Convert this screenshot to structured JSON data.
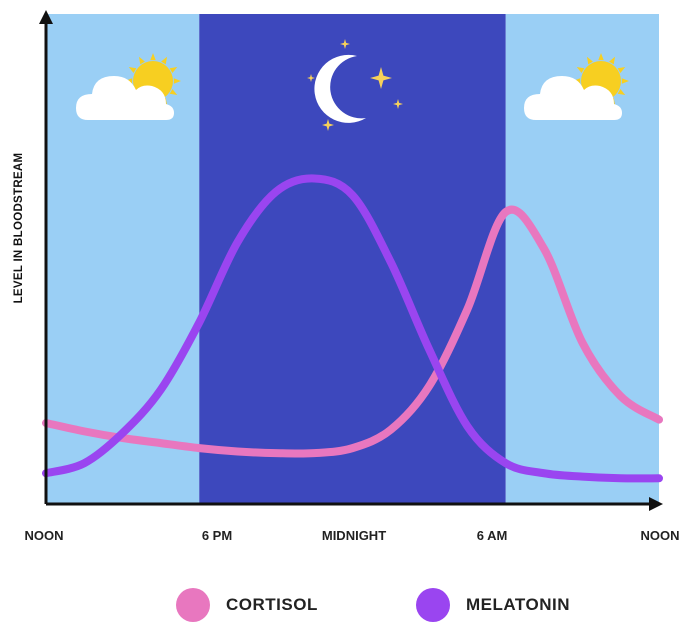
{
  "chart_data": {
    "type": "line",
    "title": "",
    "xlabel": "",
    "ylabel": "LEVEL IN BLOODSTREAM",
    "x_ticks": [
      "NOON",
      "6 PM",
      "MIDNIGHT",
      "6 AM",
      "NOON"
    ],
    "x_range_hours": [
      0,
      24
    ],
    "y_range": [
      0,
      100
    ],
    "grid": false,
    "legend_position": "bottom-center",
    "night_band_hours": [
      6,
      18
    ],
    "x": [
      0,
      1.5,
      3,
      4.5,
      6,
      7.5,
      9,
      10.5,
      12,
      13.5,
      15,
      16.5,
      18,
      19.5,
      21,
      22.5,
      24
    ],
    "series": [
      {
        "name": "CORTISOL",
        "color": "#e877bf",
        "values": [
          20,
          17.5,
          15.5,
          14,
          12.5,
          11.5,
          11,
          11,
          12.5,
          18,
          31,
          54,
          83,
          72,
          44,
          28,
          21
        ]
      },
      {
        "name": "MELATONIN",
        "color": "#9a45f0",
        "values": [
          5,
          8,
          17,
          30,
          50,
          74,
          89,
          93,
          88,
          68,
          42,
          19,
          8,
          5,
          4,
          3.5,
          3.5
        ]
      }
    ]
  },
  "colors": {
    "day_sky": "#9acff5",
    "night_sky": "#3d48bd",
    "sun": "#f7cf21",
    "moon": "#ffffff",
    "stars": "#f7d15a",
    "axis": "#111111"
  },
  "icons": [
    "sun-cloud-icon",
    "moon-icon",
    "star-icon",
    "sun-cloud-icon"
  ],
  "legend": {
    "items": [
      {
        "label": "CORTISOL",
        "color": "#e877bf"
      },
      {
        "label": "MELATONIN",
        "color": "#9a45f0"
      }
    ]
  }
}
